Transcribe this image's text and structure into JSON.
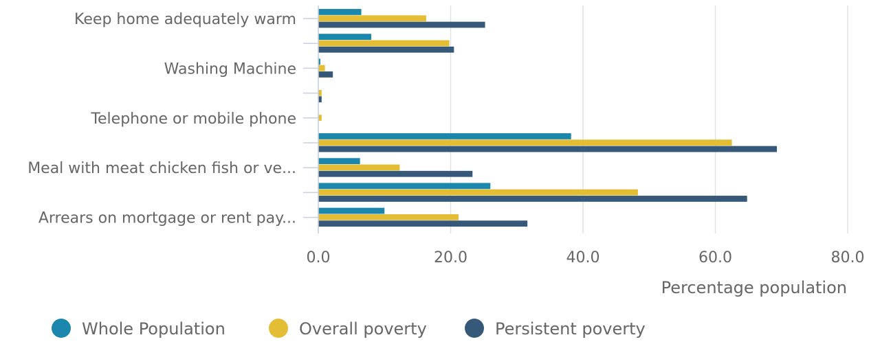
{
  "chart_data": {
    "type": "bar",
    "orientation": "horizontal",
    "title": "",
    "xlabel": "Percentage population",
    "ylabel": "",
    "xlim": [
      0,
      80
    ],
    "x_ticks": [
      "0.0",
      "20.0",
      "40.0",
      "60.0",
      "80.0"
    ],
    "x_tick_values": [
      0,
      20,
      40,
      60,
      80
    ],
    "grid": "vertical",
    "legend_position": "bottom-left",
    "categories": [
      "Keep home adequately warm",
      "",
      "Washing Machine",
      "",
      "Telephone or mobile phone",
      "",
      "Meal with meat chicken fish or ve...",
      "",
      "Arrears on mortgage or rent pay..."
    ],
    "series": [
      {
        "name": "Whole Population",
        "color": "#1b87ad",
        "values": [
          6.5,
          8.0,
          0.3,
          0.0,
          0.0,
          38.2,
          6.3,
          26.0,
          10.0
        ]
      },
      {
        "name": "Overall poverty",
        "color": "#e3be34",
        "values": [
          16.3,
          19.8,
          1.0,
          0.5,
          0.5,
          62.5,
          12.3,
          48.3,
          21.2
        ]
      },
      {
        "name": "Persistent poverty",
        "color": "#36597a",
        "values": [
          25.2,
          20.5,
          2.2,
          0.5,
          0.0,
          69.3,
          23.3,
          64.8,
          31.6
        ]
      }
    ]
  }
}
